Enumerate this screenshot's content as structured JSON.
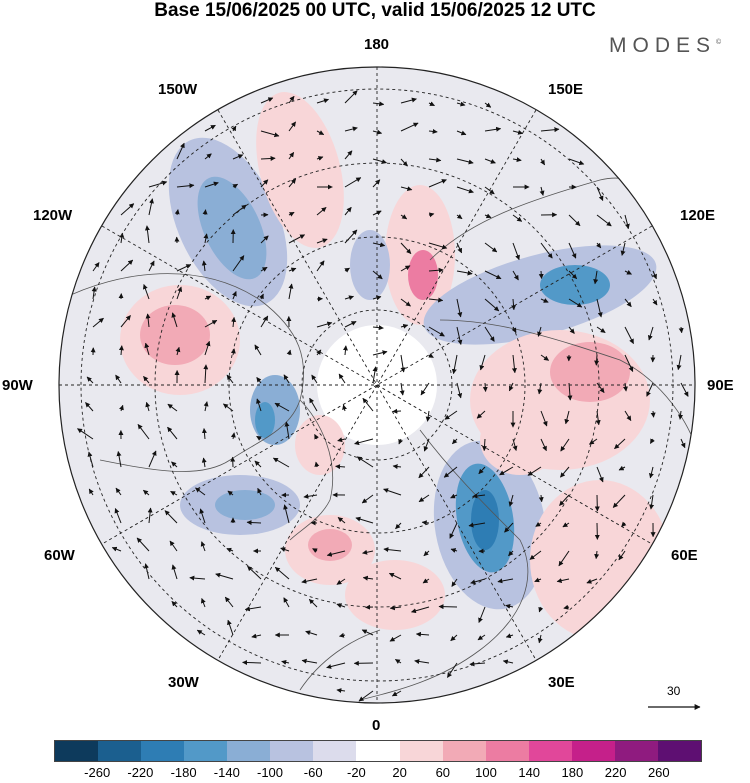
{
  "title": "Base 15/06/2025 00 UTC, valid 15/06/2025 12 UTC",
  "logo": "MODES",
  "logo_mark": "©",
  "longitude_labels": {
    "lon_180": "180",
    "lon_150e": "150E",
    "lon_120e": "120E",
    "lon_90e": "90E",
    "lon_60e": "60E",
    "lon_30e": "30E",
    "lon_0": "0",
    "lon_30w": "30W",
    "lon_60w": "60W",
    "lon_90w": "90W",
    "lon_120w": "120W",
    "lon_150w": "150W"
  },
  "reference_vector_label": "30",
  "colorbar": {
    "colors": [
      "#0d3a5c",
      "#1b5f8f",
      "#2e7db4",
      "#5299c8",
      "#8aaed5",
      "#b8c2e0",
      "#dcdcec",
      "#ffffff",
      "#f8d6d8",
      "#f2aab6",
      "#ec7ca2",
      "#e1479a",
      "#c5208a",
      "#8f1b7f",
      "#5e0f72"
    ],
    "ticks": [
      "-260",
      "-220",
      "-180",
      "-140",
      "-100",
      "-60",
      "-20",
      "20",
      "60",
      "100",
      "140",
      "180",
      "220",
      "260"
    ]
  },
  "anomaly_blobs": [
    {
      "region": "Alaska-Pacific",
      "sign": "negative",
      "level": 0.55,
      "color": "#8aaed5"
    },
    {
      "region": "Gulf of Alaska",
      "sign": "positive",
      "level": 0.35,
      "color": "#f2aab6"
    },
    {
      "region": "Canada west",
      "sign": "positive",
      "level": 0.4,
      "color": "#f2aab6"
    },
    {
      "region": "Bering Sea",
      "sign": "positive",
      "level": 0.75,
      "color": "#ec7ca2"
    },
    {
      "region": "East Siberia",
      "sign": "negative",
      "level": 0.7,
      "color": "#5299c8"
    },
    {
      "region": "Central Siberia",
      "sign": "positive",
      "level": 0.35,
      "color": "#f2aab6"
    },
    {
      "region": "Scandinavia-Russia",
      "sign": "negative",
      "level": 0.95,
      "color": "#2e7db4"
    },
    {
      "region": "North Atlantic",
      "sign": "positive",
      "level": 0.4,
      "color": "#f2aab6"
    },
    {
      "region": "Labrador",
      "sign": "negative",
      "level": 0.45,
      "color": "#8aaed5"
    },
    {
      "region": "Hudson Bay",
      "sign": "negative",
      "level": 0.6,
      "color": "#5299c8"
    }
  ]
}
